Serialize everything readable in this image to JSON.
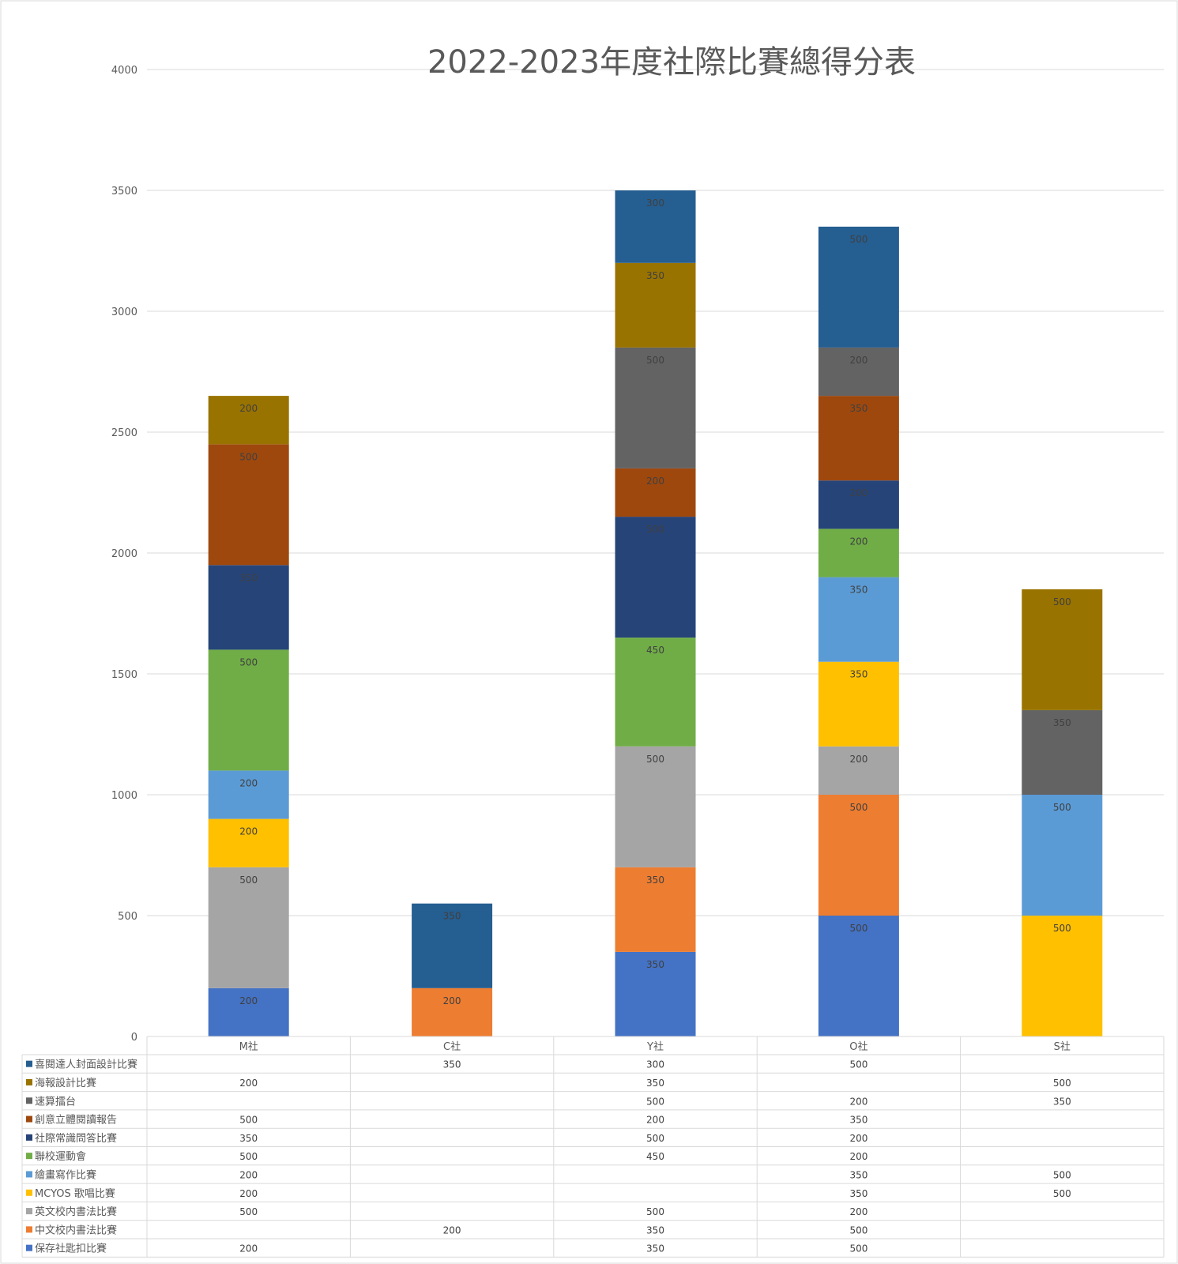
{
  "chart_data": {
    "type": "bar",
    "stacked": true,
    "title": "2022-2023年度社際比賽總得分表",
    "xlabel": "",
    "ylabel": "",
    "ylim": [
      0,
      4000
    ],
    "yticks": [
      0,
      500,
      1000,
      1500,
      2000,
      2500,
      3000,
      3500,
      4000
    ],
    "grid": true,
    "legend": "data-table-below",
    "categories": [
      "M社",
      "C社",
      "Y社",
      "O社",
      "S社"
    ],
    "series": [
      {
        "name": "保存社匙扣比賽",
        "color": "#4472C4",
        "values": [
          200,
          null,
          350,
          500,
          null
        ]
      },
      {
        "name": "中文校内書法比賽",
        "color": "#ED7D31",
        "values": [
          null,
          200,
          350,
          500,
          null
        ]
      },
      {
        "name": "英文校内書法比賽",
        "color": "#A5A5A5",
        "values": [
          500,
          null,
          500,
          200,
          null
        ]
      },
      {
        "name": "MCYOS 歌唱比賽",
        "color": "#FFC000",
        "values": [
          200,
          null,
          null,
          350,
          500
        ]
      },
      {
        "name": "繪畫寫作比賽",
        "color": "#5B9BD5",
        "values": [
          200,
          null,
          null,
          350,
          500
        ]
      },
      {
        "name": "聯校運動會",
        "color": "#70AD47",
        "values": [
          500,
          null,
          450,
          200,
          null
        ]
      },
      {
        "name": "社際常識問答比賽",
        "color": "#264478",
        "values": [
          350,
          null,
          500,
          200,
          null
        ]
      },
      {
        "name": "創意立體閱讀報告",
        "color": "#9E480E",
        "values": [
          500,
          null,
          200,
          350,
          null
        ]
      },
      {
        "name": "速算擂台",
        "color": "#636363",
        "values": [
          null,
          null,
          500,
          200,
          350
        ]
      },
      {
        "name": "海報設計比賽",
        "color": "#997300",
        "values": [
          200,
          null,
          350,
          null,
          500
        ]
      },
      {
        "name": "喜閱達人封面設計比賽",
        "color": "#255E91",
        "values": [
          null,
          350,
          300,
          500,
          null
        ]
      }
    ]
  }
}
